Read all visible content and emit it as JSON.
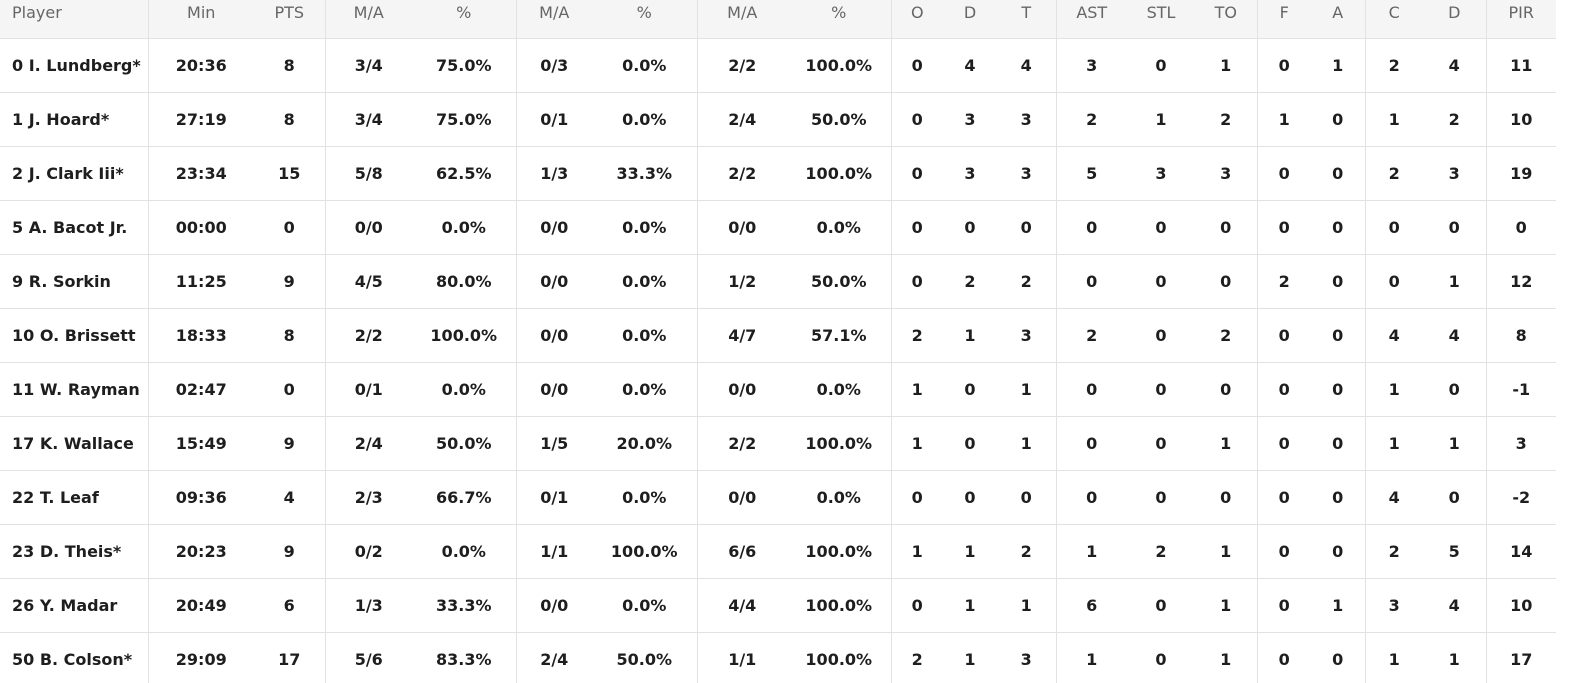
{
  "table": {
    "header": [
      "Player",
      "Min",
      "PTS",
      "M/A",
      "%",
      "M/A",
      "%",
      "M/A",
      "%",
      "O",
      "D",
      "T",
      "AST",
      "STL",
      "TO",
      "F",
      "A",
      "C",
      "D",
      "PIR"
    ],
    "rows": [
      [
        "0 I. Lundberg*",
        "20:36",
        "8",
        "3/4",
        "75.0%",
        "0/3",
        "0.0%",
        "2/2",
        "100.0%",
        "0",
        "4",
        "4",
        "3",
        "0",
        "1",
        "0",
        "1",
        "2",
        "4",
        "11"
      ],
      [
        "1 J. Hoard*",
        "27:19",
        "8",
        "3/4",
        "75.0%",
        "0/1",
        "0.0%",
        "2/4",
        "50.0%",
        "0",
        "3",
        "3",
        "2",
        "1",
        "2",
        "1",
        "0",
        "1",
        "2",
        "10"
      ],
      [
        "2 J. Clark Iii*",
        "23:34",
        "15",
        "5/8",
        "62.5%",
        "1/3",
        "33.3%",
        "2/2",
        "100.0%",
        "0",
        "3",
        "3",
        "5",
        "3",
        "3",
        "0",
        "0",
        "2",
        "3",
        "19"
      ],
      [
        "5 A. Bacot Jr.",
        "00:00",
        "0",
        "0/0",
        "0.0%",
        "0/0",
        "0.0%",
        "0/0",
        "0.0%",
        "0",
        "0",
        "0",
        "0",
        "0",
        "0",
        "0",
        "0",
        "0",
        "0",
        "0"
      ],
      [
        "9 R. Sorkin",
        "11:25",
        "9",
        "4/5",
        "80.0%",
        "0/0",
        "0.0%",
        "1/2",
        "50.0%",
        "0",
        "2",
        "2",
        "0",
        "0",
        "0",
        "2",
        "0",
        "0",
        "1",
        "12"
      ],
      [
        "10 O. Brissett",
        "18:33",
        "8",
        "2/2",
        "100.0%",
        "0/0",
        "0.0%",
        "4/7",
        "57.1%",
        "2",
        "1",
        "3",
        "2",
        "0",
        "2",
        "0",
        "0",
        "4",
        "4",
        "8"
      ],
      [
        "11 W. Rayman",
        "02:47",
        "0",
        "0/1",
        "0.0%",
        "0/0",
        "0.0%",
        "0/0",
        "0.0%",
        "1",
        "0",
        "1",
        "0",
        "0",
        "0",
        "0",
        "0",
        "1",
        "0",
        "-1"
      ],
      [
        "17 K. Wallace",
        "15:49",
        "9",
        "2/4",
        "50.0%",
        "1/5",
        "20.0%",
        "2/2",
        "100.0%",
        "1",
        "0",
        "1",
        "0",
        "0",
        "1",
        "0",
        "0",
        "1",
        "1",
        "3"
      ],
      [
        "22 T. Leaf",
        "09:36",
        "4",
        "2/3",
        "66.7%",
        "0/1",
        "0.0%",
        "0/0",
        "0.0%",
        "0",
        "0",
        "0",
        "0",
        "0",
        "0",
        "0",
        "0",
        "4",
        "0",
        "-2"
      ],
      [
        "23 D. Theis*",
        "20:23",
        "9",
        "0/2",
        "0.0%",
        "1/1",
        "100.0%",
        "6/6",
        "100.0%",
        "1",
        "1",
        "2",
        "1",
        "2",
        "1",
        "0",
        "0",
        "2",
        "5",
        "14"
      ],
      [
        "26 Y. Madar",
        "20:49",
        "6",
        "1/3",
        "33.3%",
        "0/0",
        "0.0%",
        "4/4",
        "100.0%",
        "0",
        "1",
        "1",
        "6",
        "0",
        "1",
        "0",
        "1",
        "3",
        "4",
        "10"
      ],
      [
        "50 B. Colson*",
        "29:09",
        "17",
        "5/6",
        "83.3%",
        "2/4",
        "50.0%",
        "1/1",
        "100.0%",
        "2",
        "1",
        "3",
        "1",
        "0",
        "1",
        "0",
        "0",
        "1",
        "1",
        "17"
      ]
    ]
  }
}
